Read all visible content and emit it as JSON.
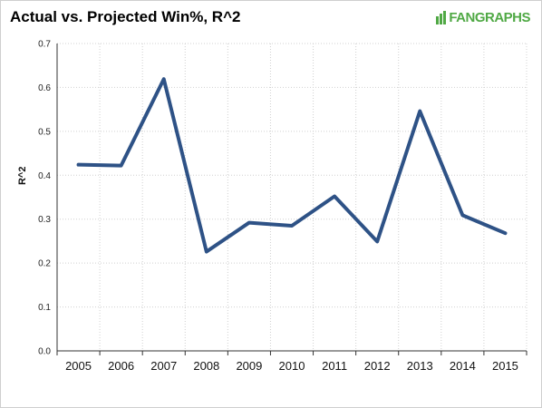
{
  "chart_data": {
    "type": "line",
    "title": "Actual vs. Projected Win%, R^2",
    "xlabel": "",
    "ylabel": "R^2",
    "ylim": [
      0,
      0.7
    ],
    "yticks": [
      "0.0",
      "0.1",
      "0.2",
      "0.3",
      "0.4",
      "0.5",
      "0.6",
      "0.7"
    ],
    "categories": [
      "2005",
      "2006",
      "2007",
      "2008",
      "2009",
      "2010",
      "2011",
      "2012",
      "2013",
      "2014",
      "2015"
    ],
    "series": [
      {
        "values": [
          0.424,
          0.422,
          0.619,
          0.226,
          0.292,
          0.285,
          0.352,
          0.249,
          0.546,
          0.309,
          0.268
        ],
        "color": "#2e5286"
      }
    ],
    "grid": true,
    "legend": "none"
  },
  "branding": {
    "logo_text": "FANGRAPHS",
    "logo_color": "#50a945"
  }
}
